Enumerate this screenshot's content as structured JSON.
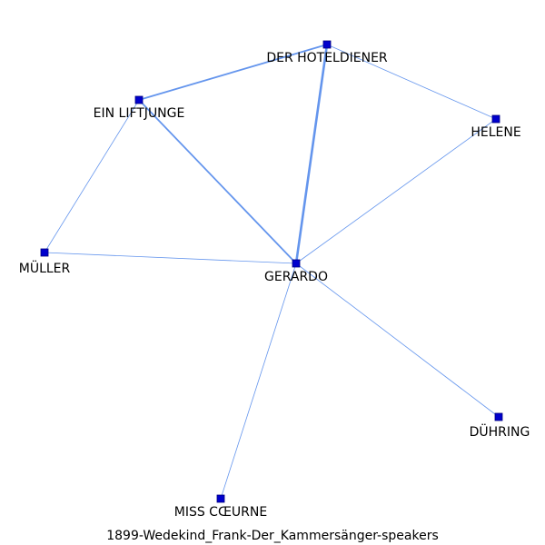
{
  "caption": "1899-Wedekind_Frank-Der_Kammersänger-speakers",
  "colors": {
    "edge": "#6495ED",
    "node_fill": "#0000CD",
    "node_stroke": "#000080",
    "label": "#000000"
  },
  "nodes": [
    {
      "id": "hoteldiener",
      "label": "DER HOTELDIENER"
    },
    {
      "id": "liftjunge",
      "label": "EIN LIFTJUNGE"
    },
    {
      "id": "helene",
      "label": "HELENE"
    },
    {
      "id": "mueller",
      "label": "MÜLLER"
    },
    {
      "id": "gerardo",
      "label": "GERARDO"
    },
    {
      "id": "duehring",
      "label": "DÜHRING"
    },
    {
      "id": "misscoeurne",
      "label": "MISS CŒURNE"
    }
  ],
  "edges": [
    {
      "source": "liftjunge",
      "target": "hoteldiener",
      "weight": 2
    },
    {
      "source": "hoteldiener",
      "target": "gerardo",
      "weight": 3
    },
    {
      "source": "liftjunge",
      "target": "gerardo",
      "weight": 2
    },
    {
      "source": "hoteldiener",
      "target": "helene",
      "weight": 1
    },
    {
      "source": "helene",
      "target": "gerardo",
      "weight": 1
    },
    {
      "source": "liftjunge",
      "target": "mueller",
      "weight": 1
    },
    {
      "source": "mueller",
      "target": "gerardo",
      "weight": 1
    },
    {
      "source": "gerardo",
      "target": "duehring",
      "weight": 1
    },
    {
      "source": "gerardo",
      "target": "misscoeurne",
      "weight": 1
    }
  ]
}
